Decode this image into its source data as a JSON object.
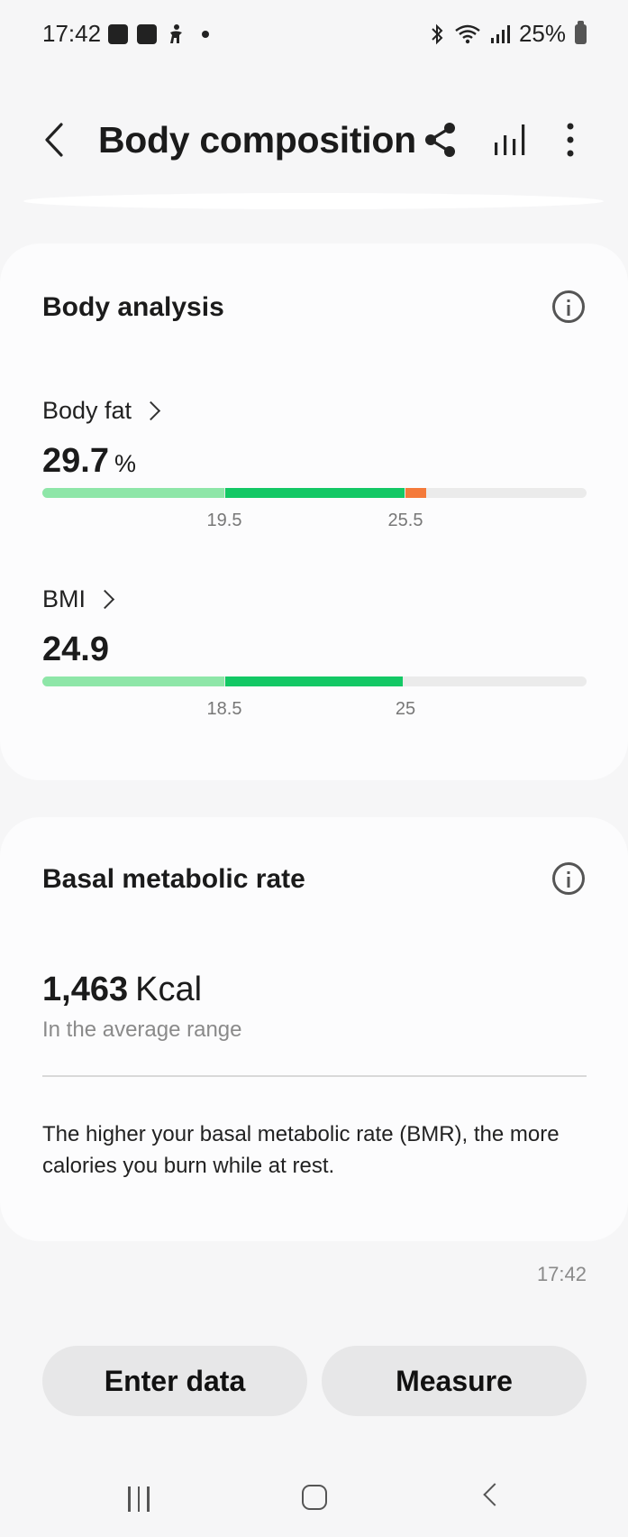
{
  "status_bar": {
    "time": "17:42",
    "battery": "25%",
    "icons": [
      "gallery-icon",
      "checkbox-icon",
      "accessibility-icon",
      "notification-dot-icon",
      "bluetooth-icon",
      "wifi-icon",
      "signal-icon",
      "battery-icon"
    ]
  },
  "app_bar": {
    "title": "Body composition",
    "icons": [
      "back-arrow-icon",
      "share-icon",
      "chart-icon",
      "more-vert-icon"
    ]
  },
  "body_analysis": {
    "title": "Body analysis",
    "body_fat": {
      "label": "Body fat",
      "value": "29.7",
      "unit": "%",
      "ticks": [
        "19.5",
        "25.5"
      ],
      "fill_percent": 70.5
    },
    "bmi": {
      "label": "BMI",
      "value": "24.9",
      "ticks": [
        "18.5",
        "25"
      ],
      "fill_percent": 66.3
    }
  },
  "bmr": {
    "title": "Basal metabolic rate",
    "value": "1,463",
    "unit": "Kcal",
    "status": "In the average range",
    "description": "The higher your basal metabolic rate (BMR), the more calories you burn while at rest."
  },
  "timestamp": "17:42",
  "buttons": {
    "enter_data": "Enter data",
    "measure": "Measure"
  },
  "colors": {
    "light_green": "#8ee6a8",
    "green": "#13c865",
    "orange": "#f47a3a",
    "track": "#ebebeb"
  }
}
